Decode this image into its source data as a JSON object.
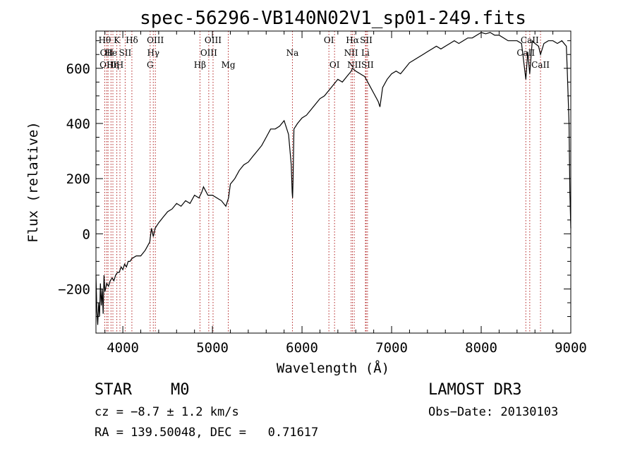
{
  "chart_data": {
    "type": "line",
    "title": "spec-56296-VB140N02V1_sp01-249.fits",
    "xlabel": "Wavelength (Å)",
    "ylabel": "Flux (relative)",
    "xlim": [
      3700,
      9000
    ],
    "ylim": [
      -360,
      735
    ],
    "x_ticks": [
      4000,
      5000,
      6000,
      7000,
      8000,
      9000
    ],
    "y_ticks": [
      -200,
      0,
      200,
      400,
      600
    ],
    "series": [
      {
        "name": "flux",
        "x": [
          3700,
          3710,
          3720,
          3730,
          3740,
          3750,
          3760,
          3770,
          3780,
          3790,
          3800,
          3820,
          3840,
          3860,
          3880,
          3900,
          3920,
          3940,
          3960,
          3980,
          4000,
          4020,
          4040,
          4060,
          4080,
          4100,
          4150,
          4200,
          4250,
          4300,
          4320,
          4340,
          4360,
          4400,
          4450,
          4500,
          4550,
          4600,
          4650,
          4700,
          4750,
          4800,
          4850,
          4880,
          4900,
          4950,
          5000,
          5050,
          5100,
          5150,
          5180,
          5200,
          5250,
          5300,
          5350,
          5400,
          5450,
          5500,
          5550,
          5600,
          5650,
          5700,
          5750,
          5800,
          5850,
          5880,
          5890,
          5895,
          5900,
          5910,
          5950,
          6000,
          6050,
          6100,
          6150,
          6200,
          6250,
          6300,
          6350,
          6400,
          6450,
          6500,
          6550,
          6563,
          6600,
          6650,
          6700,
          6750,
          6800,
          6850,
          6870,
          6900,
          6950,
          7000,
          7050,
          7100,
          7150,
          7200,
          7250,
          7300,
          7350,
          7400,
          7450,
          7500,
          7550,
          7600,
          7650,
          7700,
          7750,
          7800,
          7850,
          7900,
          7950,
          8000,
          8050,
          8100,
          8150,
          8200,
          8250,
          8300,
          8350,
          8400,
          8450,
          8498,
          8520,
          8542,
          8570,
          8600,
          8640,
          8662,
          8700,
          8750,
          8800,
          8850,
          8900,
          8950,
          8960,
          8980,
          8990,
          9000
        ],
        "y": [
          -150,
          -280,
          -330,
          -250,
          -300,
          -180,
          -260,
          -200,
          -290,
          -150,
          -210,
          -180,
          -190,
          -170,
          -160,
          -170,
          -150,
          -140,
          -140,
          -120,
          -130,
          -110,
          -120,
          -100,
          -100,
          -90,
          -80,
          -80,
          -60,
          -30,
          20,
          -10,
          20,
          40,
          60,
          80,
          90,
          110,
          100,
          120,
          110,
          140,
          130,
          150,
          170,
          140,
          140,
          130,
          120,
          100,
          130,
          180,
          200,
          230,
          250,
          260,
          280,
          300,
          320,
          350,
          380,
          380,
          390,
          410,
          360,
          250,
          150,
          130,
          200,
          380,
          400,
          420,
          430,
          450,
          470,
          490,
          500,
          520,
          540,
          560,
          550,
          570,
          590,
          600,
          590,
          580,
          570,
          540,
          510,
          480,
          460,
          530,
          560,
          580,
          590,
          580,
          600,
          620,
          630,
          640,
          650,
          660,
          670,
          680,
          670,
          680,
          690,
          700,
          690,
          700,
          710,
          710,
          720,
          730,
          725,
          730,
          720,
          720,
          710,
          700,
          700,
          700,
          690,
          560,
          660,
          580,
          700,
          690,
          680,
          650,
          690,
          700,
          700,
          690,
          700,
          680,
          600,
          400,
          150,
          20
        ]
      }
    ],
    "lines": [
      {
        "wl": 3798,
        "label": "Hθ",
        "row": 0
      },
      {
        "wl": 3820,
        "label": "OII",
        "row": 1
      },
      {
        "wl": 3835,
        "label": "OIII",
        "row": 2
      },
      {
        "wl": 3868,
        "label": "He",
        "row": 1
      },
      {
        "wl": 3889,
        "label": "Hη",
        "row": 2
      },
      {
        "wl": 3933,
        "label": "K",
        "row": 0
      },
      {
        "wl": 3968,
        "label": "H",
        "row": 2
      },
      {
        "wl": 4026,
        "label": "SII",
        "row": 1
      },
      {
        "wl": 4101,
        "label": "Hδ",
        "row": 0
      },
      {
        "wl": 4305,
        "label": "G",
        "row": 2
      },
      {
        "wl": 4340,
        "label": "Hγ",
        "row": 1
      },
      {
        "wl": 4363,
        "label": "OIII",
        "row": 0
      },
      {
        "wl": 4861,
        "label": "Hβ",
        "row": 2
      },
      {
        "wl": 4959,
        "label": "OIII",
        "row": 1
      },
      {
        "wl": 5007,
        "label": "OIII",
        "row": 0
      },
      {
        "wl": 5177,
        "label": "Mg",
        "row": 2
      },
      {
        "wl": 5893,
        "label": "Na",
        "row": 1
      },
      {
        "wl": 6300,
        "label": "OI",
        "row": 0
      },
      {
        "wl": 6363,
        "label": "OI",
        "row": 2
      },
      {
        "wl": 6548,
        "label": "NII",
        "row": 1
      },
      {
        "wl": 6563,
        "label": "Hα",
        "row": 0
      },
      {
        "wl": 6583,
        "label": "NII",
        "row": 2
      },
      {
        "wl": 6708,
        "label": "Li",
        "row": 1
      },
      {
        "wl": 6716,
        "label": "SII",
        "row": 0
      },
      {
        "wl": 6731,
        "label": "SII",
        "row": 2
      },
      {
        "wl": 8498,
        "label": "CaII",
        "row": 1
      },
      {
        "wl": 8542,
        "label": "CaII",
        "row": 0
      },
      {
        "wl": 8662,
        "label": "CaII",
        "row": 2
      }
    ]
  },
  "info": {
    "class": "STAR",
    "subclass": "M0",
    "survey": "LAMOST DR3",
    "cz": "cz = −8.7 ± 1.2 km/s",
    "obs_date": "Obs−Date: 20130103",
    "coords": "RA = 139.50048, DEC =   0.71617"
  }
}
